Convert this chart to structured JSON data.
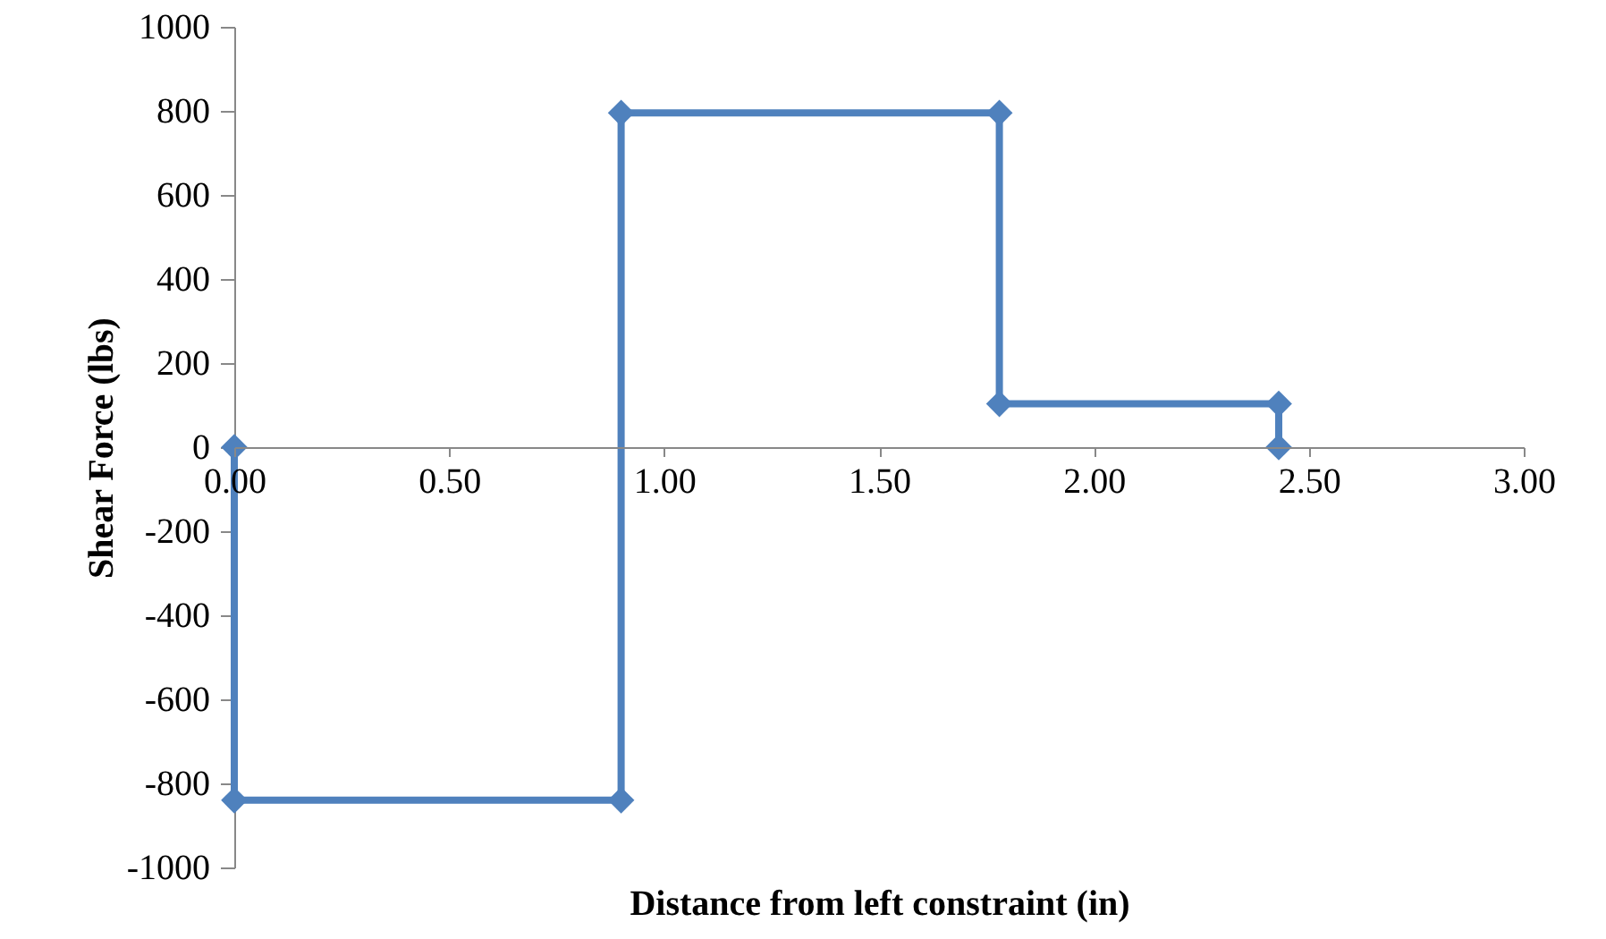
{
  "chart_data": {
    "type": "line",
    "xlabel": "Distance from left constraint (in)",
    "ylabel": "Shear Force (lbs)",
    "x": [
      0,
      0,
      0.9,
      0.9,
      1.78,
      1.78,
      2.43,
      2.43
    ],
    "series": [
      {
        "color": "#4f81bd",
        "values": [
          0,
          -840,
          -840,
          795,
          795,
          103,
          103,
          0
        ]
      }
    ],
    "xlim": [
      0,
      3
    ],
    "xticks": [
      {
        "value": 0,
        "label": "0.00"
      },
      {
        "value": 0.5,
        "label": "0.50"
      },
      {
        "value": 1,
        "label": "1.00"
      },
      {
        "value": 1.5,
        "label": "1.50"
      },
      {
        "value": 2,
        "label": "2.00"
      },
      {
        "value": 2.5,
        "label": "2.50"
      },
      {
        "value": 3,
        "label": "3.00"
      }
    ],
    "ylim": [
      -1000,
      1000
    ],
    "yticks": [
      -1000,
      -800,
      -600,
      -400,
      -200,
      0,
      200,
      400,
      600,
      800,
      1000
    ],
    "marker": "diamond",
    "line_style": "solid",
    "grid": false
  }
}
